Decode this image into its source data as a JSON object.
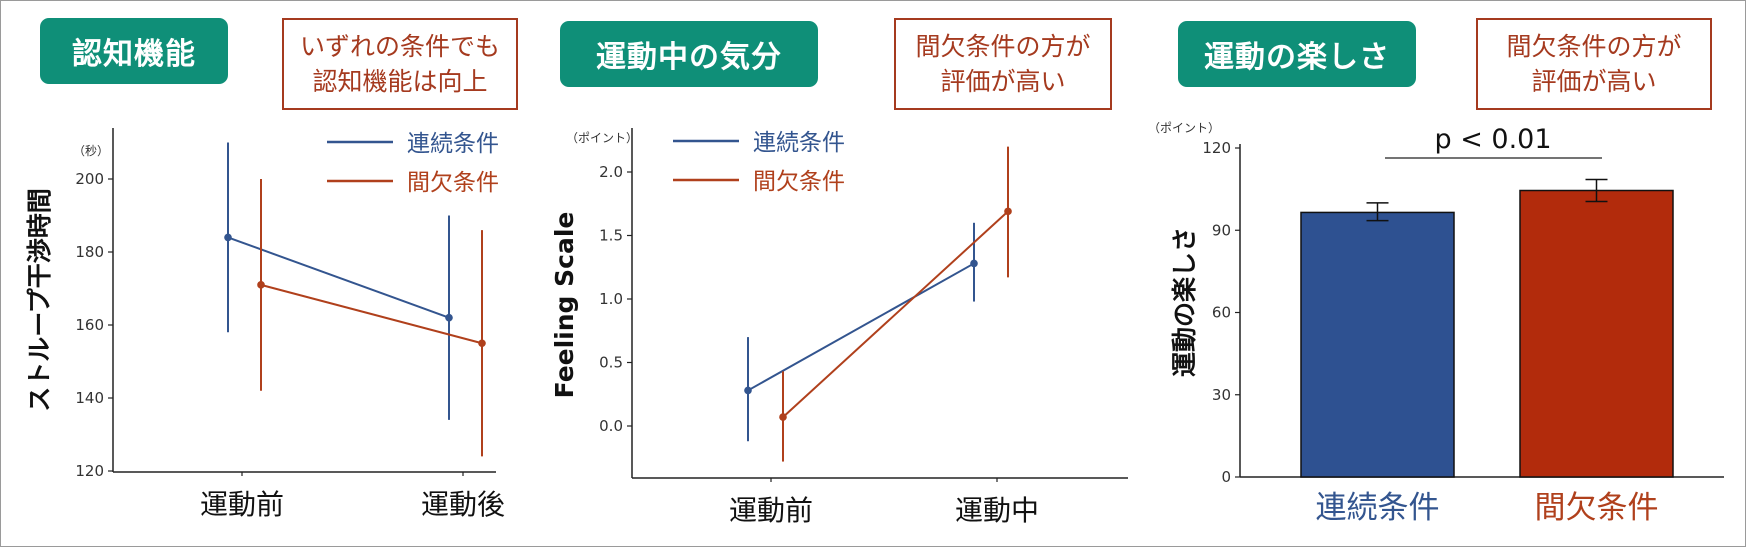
{
  "colors": {
    "continuous": "#33558f",
    "intermittent": "#b0401c",
    "badge": "#0f8f78",
    "note": "#a53a1f",
    "bar_blue": "#2e5191",
    "bar_red": "#b22b0c"
  },
  "panels": [
    {
      "badge": "認知機能",
      "note": [
        "いずれの条件でも",
        "認知機能は向上"
      ]
    },
    {
      "badge": "運動中の気分",
      "note": [
        "間欠条件の方が",
        "評価が高い"
      ]
    },
    {
      "badge": "運動の楽しさ",
      "note": [
        "間欠条件の方が",
        "評価が高い"
      ]
    }
  ],
  "chart_data": [
    {
      "type": "line",
      "ylabel": "ストループ干渉時間",
      "yunit": "（秒）",
      "categories": [
        "運動前",
        "運動後"
      ],
      "ylim": [
        120,
        210
      ],
      "yticks": [
        120,
        140,
        160,
        180,
        200
      ],
      "series": [
        {
          "name": "連続条件",
          "values": [
            184,
            162
          ],
          "err_low": [
            158,
            134
          ],
          "err_high": [
            210,
            190
          ]
        },
        {
          "name": "間欠条件",
          "values": [
            171,
            155
          ],
          "err_low": [
            142,
            124
          ],
          "err_high": [
            200,
            186
          ]
        }
      ]
    },
    {
      "type": "line",
      "ylabel": "Feeling Scale",
      "yunit": "（ポイント）",
      "categories": [
        "運動前",
        "運動中"
      ],
      "ylim": [
        -0.4,
        2.3
      ],
      "yticks": [
        "0.0",
        "0.5",
        "1.0",
        "1.5",
        "2.0"
      ],
      "series": [
        {
          "name": "連続条件",
          "values": [
            0.28,
            1.28
          ],
          "err_low": [
            -0.12,
            0.98
          ],
          "err_high": [
            0.7,
            1.6
          ]
        },
        {
          "name": "間欠条件",
          "values": [
            0.07,
            1.69
          ],
          "err_low": [
            -0.28,
            1.17
          ],
          "err_high": [
            0.43,
            2.2
          ]
        }
      ]
    },
    {
      "type": "bar",
      "ylabel": "運動の楽しさ",
      "yunit": "（ポイント）",
      "categories": [
        "連続条件",
        "間欠条件"
      ],
      "values": [
        96.5,
        104.5
      ],
      "err_low": [
        93.5,
        100.5
      ],
      "err_high": [
        100,
        108.5
      ],
      "ylim": [
        0,
        120
      ],
      "yticks": [
        0,
        30,
        60,
        90,
        120
      ],
      "annotation": "p < 0.01"
    }
  ]
}
